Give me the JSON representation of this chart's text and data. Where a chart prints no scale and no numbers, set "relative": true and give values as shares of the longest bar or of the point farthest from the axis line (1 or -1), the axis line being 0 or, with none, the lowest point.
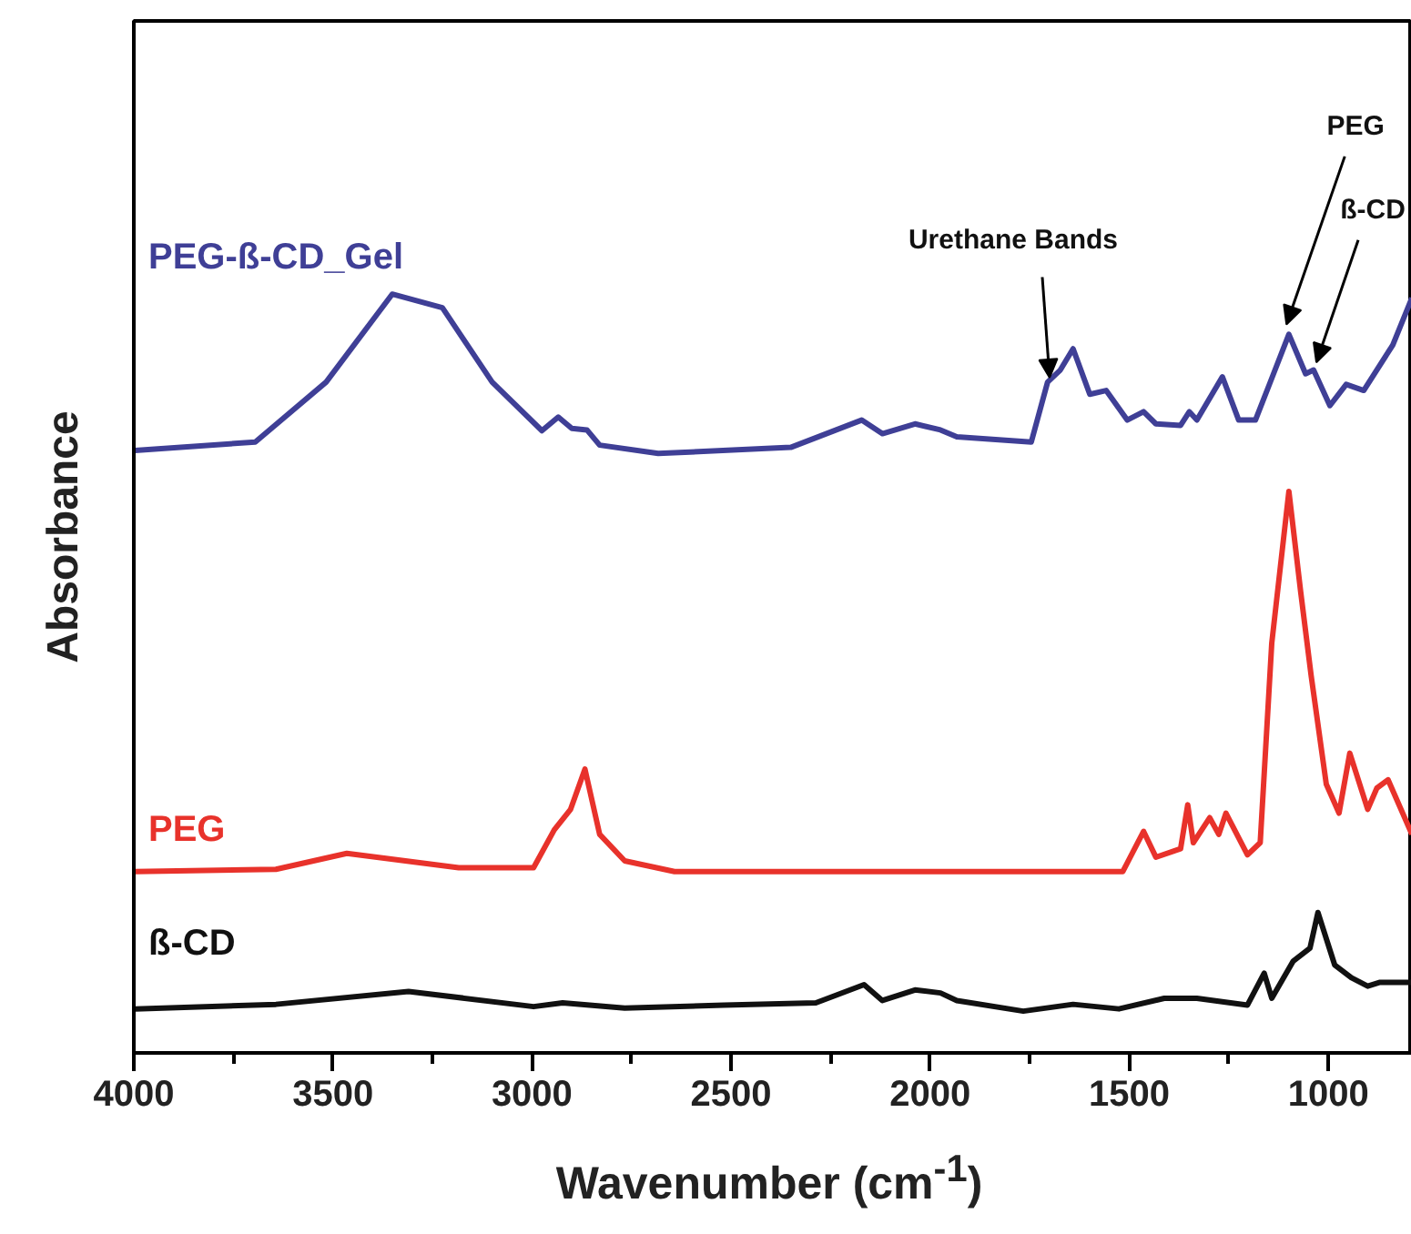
{
  "chart_data": {
    "type": "line",
    "relative": true,
    "xlabel": "Wavenumber (cm$^{-1}$)",
    "ylabel": "Absorbance",
    "xlim": [
      4000,
      790
    ],
    "xticks": [
      4000,
      3500,
      3000,
      2500,
      2000,
      1500,
      1000
    ],
    "tick_labels": "x",
    "grid": false,
    "series": [
      {
        "name": "PEG-ß-CD_Gel",
        "color": "#3f3f96",
        "x": [
          3997,
          3695,
          3517,
          3351,
          3225,
          3100,
          2975,
          2934,
          2900,
          2862,
          2830,
          2683,
          2350,
          2172,
          2120,
          2038,
          1974,
          1933,
          1746,
          1705,
          1673,
          1641,
          1599,
          1558,
          1505,
          1464,
          1433,
          1371,
          1349,
          1330,
          1266,
          1225,
          1183,
          1142,
          1099,
          1057,
          1037,
          996,
          955,
          911,
          838,
          790
        ],
        "values": [
          0.794,
          0.805,
          0.884,
          1.0,
          0.982,
          0.884,
          0.82,
          0.838,
          0.823,
          0.821,
          0.801,
          0.79,
          0.798,
          0.834,
          0.816,
          0.829,
          0.821,
          0.812,
          0.805,
          0.884,
          0.9,
          0.928,
          0.868,
          0.873,
          0.834,
          0.845,
          0.829,
          0.827,
          0.845,
          0.834,
          0.891,
          0.834,
          0.834,
          0.889,
          0.947,
          0.895,
          0.9,
          0.853,
          0.881,
          0.873,
          0.933,
          0.995
        ]
      },
      {
        "name": "PEG",
        "color": "#e8322b",
        "x": [
          3997,
          3643,
          3465,
          3184,
          2996,
          2944,
          2903,
          2867,
          2830,
          2767,
          2642,
          1516,
          1464,
          1433,
          1371,
          1353,
          1339,
          1298,
          1275,
          1257,
          1203,
          1171,
          1142,
          1099,
          1069,
          1043,
          1005,
          973,
          946,
          901,
          878,
          850,
          790
        ],
        "values": [
          0.239,
          0.242,
          0.263,
          0.244,
          0.244,
          0.294,
          0.321,
          0.374,
          0.288,
          0.253,
          0.239,
          0.239,
          0.292,
          0.258,
          0.269,
          0.327,
          0.277,
          0.31,
          0.288,
          0.316,
          0.261,
          0.277,
          0.54,
          0.74,
          0.606,
          0.497,
          0.354,
          0.316,
          0.395,
          0.321,
          0.349,
          0.36,
          0.288
        ]
      },
      {
        "name": "ß-CD",
        "color": "#111111",
        "x": [
          3997,
          3643,
          3310,
          2996,
          2923,
          2767,
          2518,
          2287,
          2166,
          2120,
          2038,
          1974,
          1933,
          1766,
          1641,
          1526,
          1412,
          1330,
          1203,
          1161,
          1142,
          1088,
          1046,
          1026,
          984,
          942,
          901,
          870,
          790
        ],
        "values": [
          0.058,
          0.064,
          0.081,
          0.061,
          0.066,
          0.059,
          0.063,
          0.066,
          0.09,
          0.069,
          0.083,
          0.079,
          0.069,
          0.055,
          0.064,
          0.058,
          0.072,
          0.072,
          0.063,
          0.105,
          0.072,
          0.121,
          0.138,
          0.185,
          0.116,
          0.099,
          0.088,
          0.093,
          0.093
        ]
      }
    ],
    "annotations": [
      {
        "text": "Urethane Bands",
        "x": 1700,
        "y": 0.89
      },
      {
        "text": "PEG",
        "x": 1105,
        "y": 0.96
      },
      {
        "text": "ß-CD",
        "x": 1030,
        "y": 0.91
      }
    ]
  }
}
